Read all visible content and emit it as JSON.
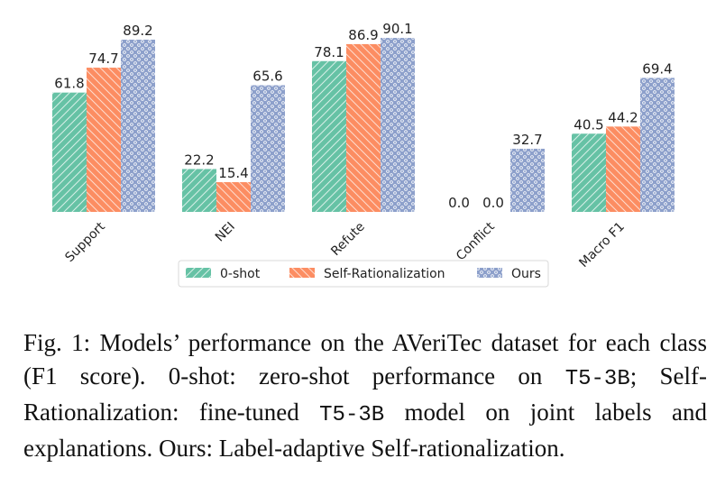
{
  "chart_data": {
    "type": "bar",
    "title": "",
    "xlabel": "",
    "ylabel": "",
    "ylim": [
      0,
      92
    ],
    "grid": false,
    "legend_position": "bottom",
    "categories": [
      "Support",
      "NEI",
      "Refute",
      "Conflict",
      "Macro F1"
    ],
    "series": [
      {
        "name": "0-shot",
        "color": "#66c2a5",
        "hatch": "diagonal",
        "values": [
          61.8,
          22.2,
          78.1,
          0.0,
          40.5
        ],
        "labels": [
          "61.8",
          "22.2",
          "78.1",
          "0.0",
          "40.5"
        ]
      },
      {
        "name": "Self-Rationalization",
        "color": "#fc8d62",
        "hatch": "backslash",
        "values": [
          74.7,
          15.4,
          86.9,
          0.0,
          44.2
        ],
        "labels": [
          "74.7",
          "15.4",
          "86.9",
          "0.0",
          "44.2"
        ]
      },
      {
        "name": "Ours",
        "color": "#8da0cb",
        "hatch": "circles",
        "values": [
          89.2,
          65.6,
          90.1,
          32.7,
          69.4
        ],
        "labels": [
          "89.2",
          "65.6",
          "90.1",
          "32.7",
          "69.4"
        ]
      }
    ]
  },
  "caption": {
    "prefix": "Fig. 1: Models’ performance on the AVeriTec dataset for each class (F1 score). 0-shot: zero-shot performance on ",
    "code1": "T5-3B",
    "middle": "; Self-Rationalization: fine-tuned ",
    "code2": "T5-3B",
    "suffix": " model on joint labels and explanations. Ours: Label-adaptive Self-rationalization."
  }
}
